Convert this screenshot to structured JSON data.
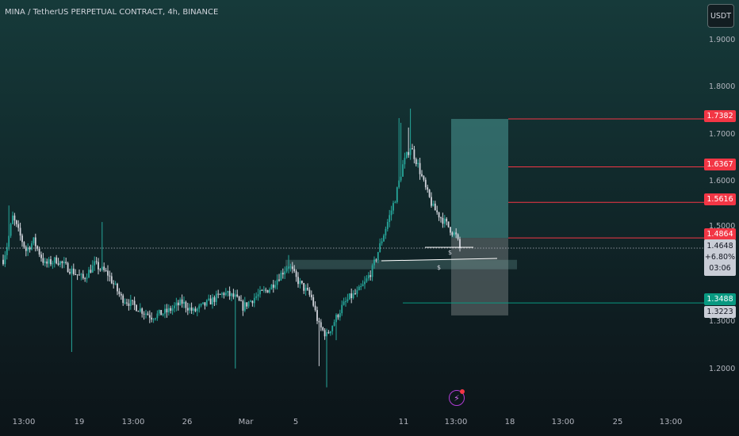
{
  "header": {
    "title": "MINA / TetherUS PERPETUAL CONTRACT, 4h, BINANCE",
    "currency_button": "USDT"
  },
  "price_axis": {
    "labels": [
      "1.9000",
      "1.8000",
      "1.7000",
      "1.6000",
      "1.5000",
      "1.3000",
      "1.2000"
    ]
  },
  "price_tags": {
    "tp3": "1.7382",
    "tp2": "1.6367",
    "tp1": "1.5616",
    "entry": "1.4864",
    "stop": "1.3488",
    "low_ref": "1.3223"
  },
  "current_price": {
    "price": "1.4648",
    "change": "+6.80%",
    "countdown": "03:06"
  },
  "time_axis": {
    "labels": [
      "13:00",
      "19",
      "13:00",
      "26",
      "Mar",
      "5",
      "11",
      "13:00",
      "18",
      "13:00",
      "25",
      "13:00"
    ]
  },
  "annotations": {
    "s1": "$",
    "s2": "$"
  },
  "colors": {
    "up": "#26a69a",
    "down": "#d1d4dc",
    "target_line": "#f23645",
    "stop_line": "#089981",
    "profit_zone": "#4a9a97",
    "loss_zone": "#6b7576"
  },
  "chart_data": {
    "type": "candlestick",
    "symbol": "MINA / TetherUS PERPETUAL CONTRACT",
    "interval": "4h",
    "ylim": [
      1.12,
      1.95
    ],
    "current_price": 1.4648,
    "series_path": [
      [
        0,
        1.44
      ],
      [
        2,
        1.47
      ],
      [
        5,
        1.53
      ],
      [
        8,
        1.5
      ],
      [
        12,
        1.46
      ],
      [
        16,
        1.48
      ],
      [
        22,
        1.43
      ],
      [
        28,
        1.44
      ],
      [
        35,
        1.42
      ],
      [
        42,
        1.4
      ],
      [
        48,
        1.43
      ],
      [
        55,
        1.41
      ],
      [
        62,
        1.36
      ],
      [
        70,
        1.34
      ],
      [
        78,
        1.32
      ],
      [
        86,
        1.33
      ],
      [
        94,
        1.35
      ],
      [
        100,
        1.33
      ],
      [
        108,
        1.35
      ],
      [
        116,
        1.37
      ],
      [
        122,
        1.36
      ],
      [
        126,
        1.34
      ],
      [
        132,
        1.36
      ],
      [
        140,
        1.38
      ],
      [
        146,
        1.41
      ],
      [
        150,
        1.43
      ],
      [
        154,
        1.4
      ],
      [
        158,
        1.38
      ],
      [
        162,
        1.36
      ],
      [
        166,
        1.3
      ],
      [
        170,
        1.28
      ],
      [
        174,
        1.31
      ],
      [
        178,
        1.34
      ],
      [
        182,
        1.36
      ],
      [
        186,
        1.37
      ],
      [
        190,
        1.39
      ],
      [
        194,
        1.42
      ],
      [
        198,
        1.47
      ],
      [
        202,
        1.52
      ],
      [
        206,
        1.57
      ],
      [
        210,
        1.64
      ],
      [
        214,
        1.68
      ],
      [
        218,
        1.64
      ],
      [
        222,
        1.59
      ],
      [
        226,
        1.55
      ],
      [
        230,
        1.53
      ],
      [
        234,
        1.51
      ],
      [
        238,
        1.49
      ],
      [
        240,
        1.4648
      ]
    ],
    "position": {
      "entry": 1.4864,
      "targets": [
        1.5616,
        1.6367,
        1.7382
      ],
      "stop_loss": 1.3488
    },
    "levels": [
      1.3223
    ],
    "zone": [
      1.42,
      1.44
    ]
  }
}
